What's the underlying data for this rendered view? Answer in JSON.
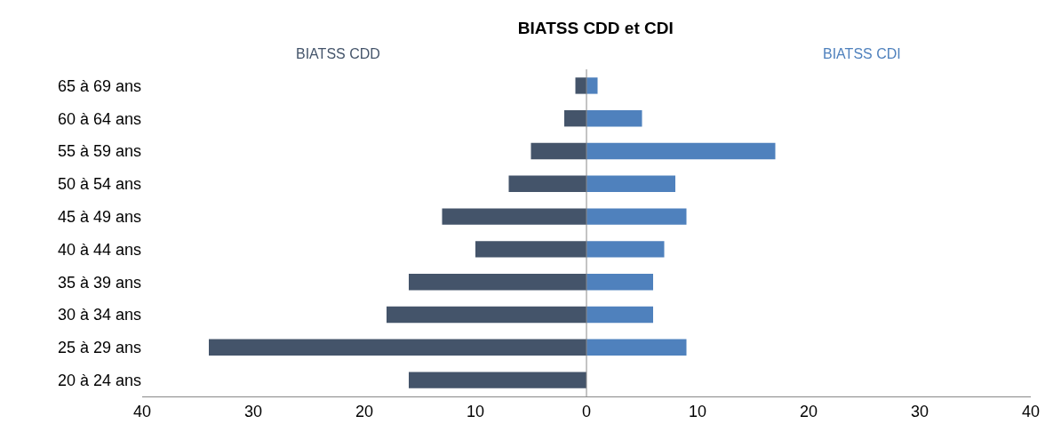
{
  "chart_data": {
    "type": "bar",
    "orientation": "horizontal",
    "title": "BIATSS CDD et CDI",
    "categories": [
      "65 à 69 ans",
      "60 à 64 ans",
      "55 à 59 ans",
      "50 à 54 ans",
      "45 à 49 ans",
      "40 à 44 ans",
      "35 à 39 ans",
      "30 à 34 ans",
      "25 à 29 ans",
      "20 à 24 ans"
    ],
    "series": [
      {
        "name": "BIATSS CDD",
        "color": "#44546a",
        "values": [
          -1,
          -2,
          -5,
          -7,
          -13,
          -10,
          -16,
          -18,
          -34,
          -16
        ]
      },
      {
        "name": "BIATSS CDI",
        "color": "#4f81bd",
        "values": [
          1,
          5,
          17,
          8,
          9,
          7,
          6,
          6,
          9,
          0
        ]
      }
    ],
    "xlim": [
      -40,
      40
    ],
    "xticks": [
      {
        "value": -40,
        "label": "40"
      },
      {
        "value": -30,
        "label": "30"
      },
      {
        "value": -20,
        "label": "20"
      },
      {
        "value": -10,
        "label": "10"
      },
      0,
      10,
      20,
      30,
      40
    ],
    "stacked": true,
    "ref_lines": [
      {
        "axis": "x",
        "value": 0,
        "color": "#888888"
      }
    ],
    "grid": false,
    "legend": false
  }
}
